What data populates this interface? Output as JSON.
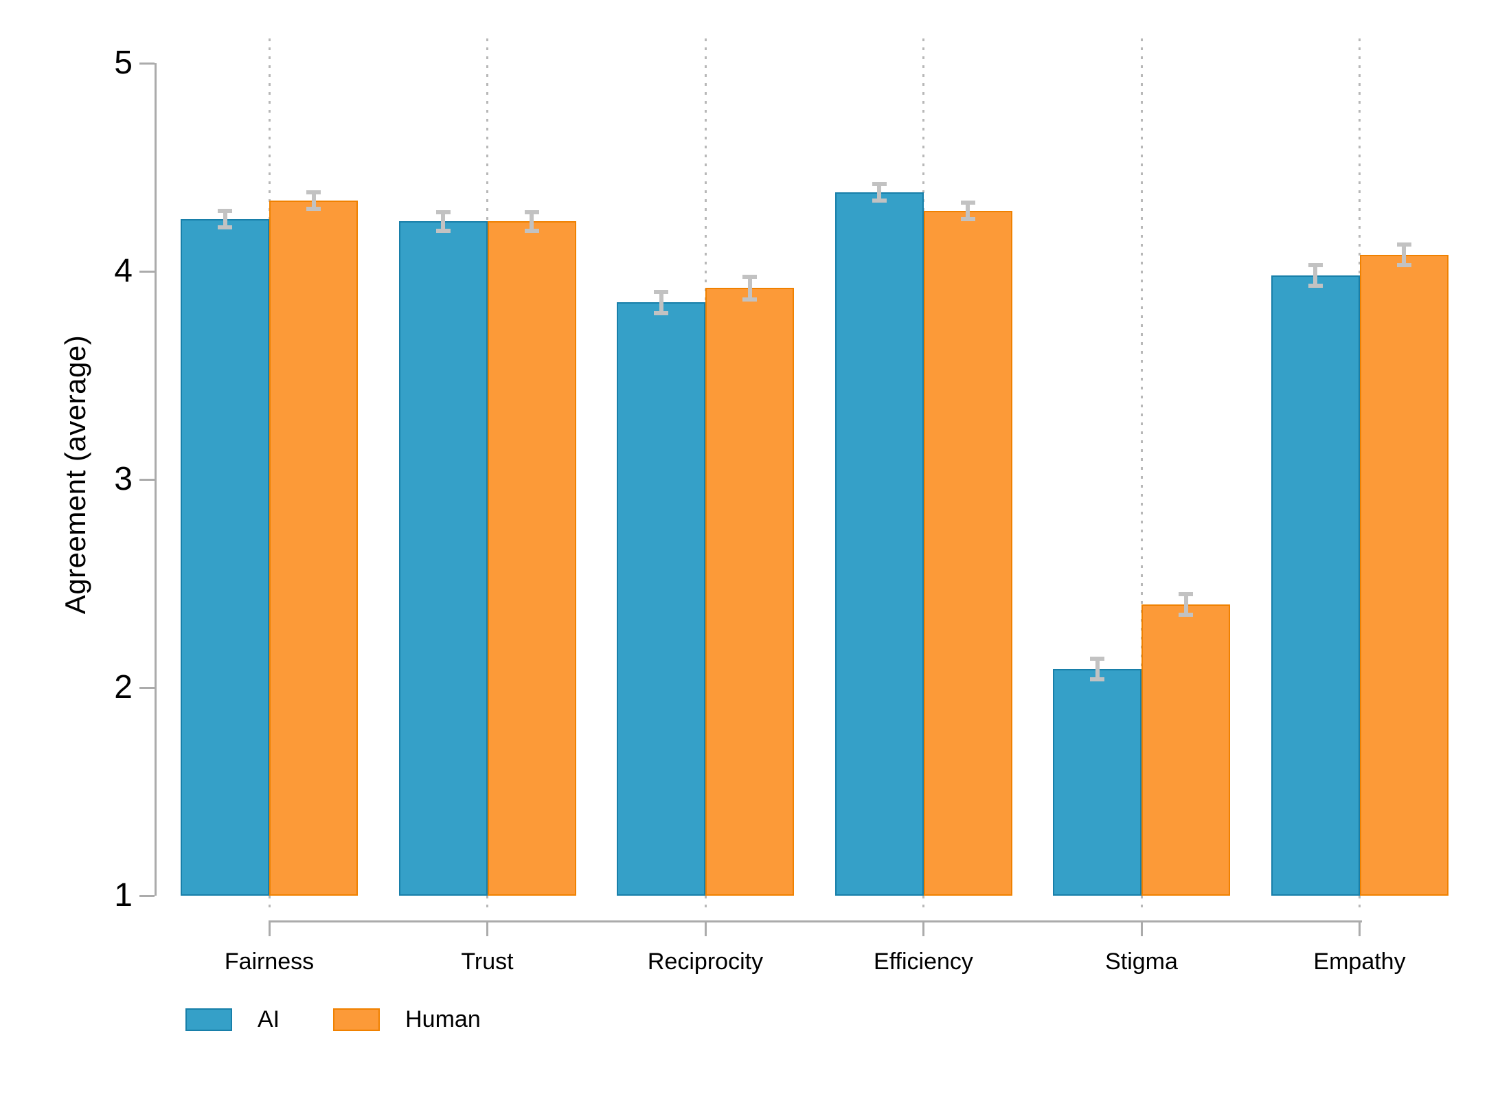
{
  "chart_data": {
    "type": "bar",
    "title": "",
    "categories": [
      "Fairness",
      "Trust",
      "Reciprocity",
      "Efficiency",
      "Stigma",
      "Empathy"
    ],
    "series": [
      {
        "name": "AI",
        "color": "#35a0c8",
        "border_color": "#187fa9",
        "values": [
          4.25,
          4.24,
          3.85,
          4.38,
          2.09,
          3.98
        ],
        "errors": [
          0.04,
          0.045,
          0.05,
          0.04,
          0.05,
          0.05
        ]
      },
      {
        "name": "Human",
        "color": "#fc9a38",
        "border_color": "#f08100",
        "values": [
          4.34,
          4.24,
          3.92,
          4.29,
          2.4,
          4.08
        ],
        "errors": [
          0.04,
          0.045,
          0.055,
          0.04,
          0.05,
          0.05
        ]
      }
    ],
    "xlabel": "",
    "ylabel": "Agreement (average)",
    "ylim": [
      1,
      5
    ],
    "yticks": [
      1,
      2,
      3,
      4,
      5
    ],
    "grid": "vertical-dotted-at-categories",
    "legend_position": "bottom-left",
    "error_bars": true
  },
  "colors": {
    "background": "#ffffff",
    "axis": "#ababab",
    "gridline": "#b8b8b8",
    "error_bar": "#c2c2c2",
    "text": "#000000"
  }
}
